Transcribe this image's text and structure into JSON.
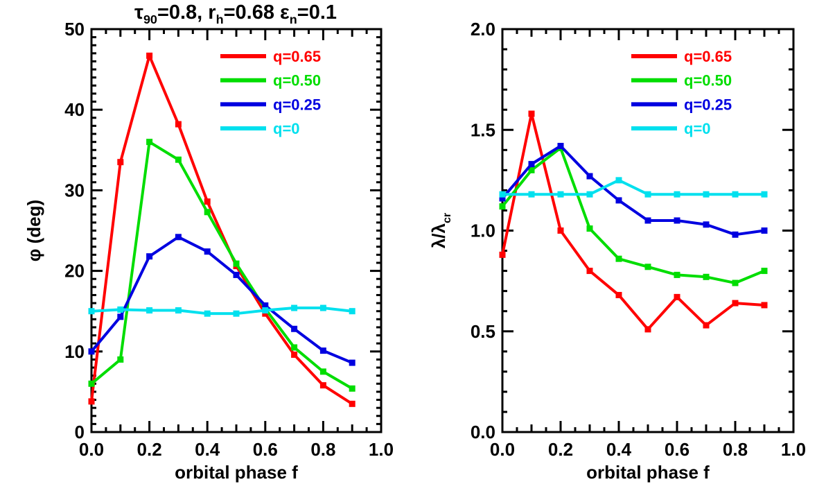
{
  "header": {
    "title_parts": [
      {
        "t": "τ"
      },
      {
        "sub": "90"
      },
      {
        "t": "=0.8, r"
      },
      {
        "sub": "h"
      },
      {
        "t": "=0.68 ε"
      },
      {
        "sub": "n"
      },
      {
        "t": "=0.1"
      }
    ],
    "title_plain": "τ90=0.8, rh=0.68 εn=0.1"
  },
  "colors": {
    "q065": "#ff0000",
    "q050": "#00dd00",
    "q025": "#0000e0",
    "q0": "#00e0ee",
    "axis": "#000000"
  },
  "chart_data": [
    {
      "type": "line",
      "title": "",
      "xlabel": "orbital phase f",
      "ylabel": "φ (deg)",
      "ylabel_sub": "",
      "xlim": [
        0.0,
        1.0
      ],
      "ylim": [
        0,
        50
      ],
      "xtick_labels": [
        "0.0",
        "0.2",
        "0.4",
        "0.6",
        "0.8",
        "1.0"
      ],
      "xticks": [
        0.0,
        0.2,
        0.4,
        0.6,
        0.8,
        1.0
      ],
      "ytick_labels": [
        "0",
        "10",
        "20",
        "30",
        "40",
        "50"
      ],
      "yticks": [
        0,
        10,
        20,
        30,
        40,
        50
      ],
      "x_minor_step": 0.05,
      "y_minor_step": 1,
      "grid": false,
      "legend_position": "upper-right-inside",
      "x": [
        0.0,
        0.1,
        0.2,
        0.3,
        0.4,
        0.5,
        0.6,
        0.7,
        0.8,
        0.9
      ],
      "series": [
        {
          "name": "q=0.65",
          "color": "#ff0000",
          "marker": "square",
          "values": [
            3.8,
            33.5,
            46.7,
            38.2,
            28.6,
            20.6,
            14.7,
            9.6,
            5.8,
            3.5
          ]
        },
        {
          "name": "q=0.50",
          "color": "#00dd00",
          "marker": "square",
          "values": [
            6.0,
            9.0,
            36.0,
            33.8,
            27.3,
            20.9,
            15.3,
            10.5,
            7.5,
            5.4
          ]
        },
        {
          "name": "q=0.25",
          "color": "#0000e0",
          "marker": "square",
          "values": [
            10.0,
            14.3,
            21.8,
            24.2,
            22.4,
            19.5,
            15.7,
            12.8,
            10.1,
            8.6
          ]
        },
        {
          "name": "q=0",
          "color": "#00e0ee",
          "marker": "square",
          "values": [
            15.0,
            15.2,
            15.1,
            15.1,
            14.7,
            14.7,
            15.1,
            15.4,
            15.4,
            15.0
          ]
        }
      ]
    },
    {
      "type": "line",
      "title": "",
      "xlabel": "orbital phase f",
      "ylabel": "λ/λ",
      "ylabel_sub": "cr",
      "xlim": [
        0.0,
        1.0
      ],
      "ylim": [
        0.0,
        2.0
      ],
      "xtick_labels": [
        "0.0",
        "0.2",
        "0.4",
        "0.6",
        "0.8",
        "1.0"
      ],
      "xticks": [
        0.0,
        0.2,
        0.4,
        0.6,
        0.8,
        1.0
      ],
      "ytick_labels": [
        "0.0",
        "0.5",
        "1.0",
        "1.5",
        "2.0"
      ],
      "yticks": [
        0.0,
        0.5,
        1.0,
        1.5,
        2.0
      ],
      "x_minor_step": 0.05,
      "y_minor_step": 0.1,
      "grid": false,
      "legend_position": "upper-right-inside",
      "x": [
        0.0,
        0.1,
        0.2,
        0.3,
        0.4,
        0.5,
        0.6,
        0.7,
        0.8,
        0.9
      ],
      "series": [
        {
          "name": "q=0.65",
          "color": "#ff0000",
          "marker": "square",
          "values": [
            0.88,
            1.58,
            1.0,
            0.8,
            0.68,
            0.51,
            0.67,
            0.53,
            0.64,
            0.63
          ]
        },
        {
          "name": "q=0.50",
          "color": "#00dd00",
          "marker": "square",
          "values": [
            1.12,
            1.3,
            1.41,
            1.01,
            0.86,
            0.82,
            0.78,
            0.77,
            0.74,
            0.8
          ]
        },
        {
          "name": "q=0.25",
          "color": "#0000e0",
          "marker": "square",
          "values": [
            1.16,
            1.33,
            1.42,
            1.27,
            1.15,
            1.05,
            1.05,
            1.03,
            0.98,
            1.0
          ]
        },
        {
          "name": "q=0",
          "color": "#00e0ee",
          "marker": "square",
          "values": [
            1.18,
            1.18,
            1.18,
            1.18,
            1.25,
            1.18,
            1.18,
            1.18,
            1.18,
            1.18
          ]
        }
      ]
    }
  ]
}
